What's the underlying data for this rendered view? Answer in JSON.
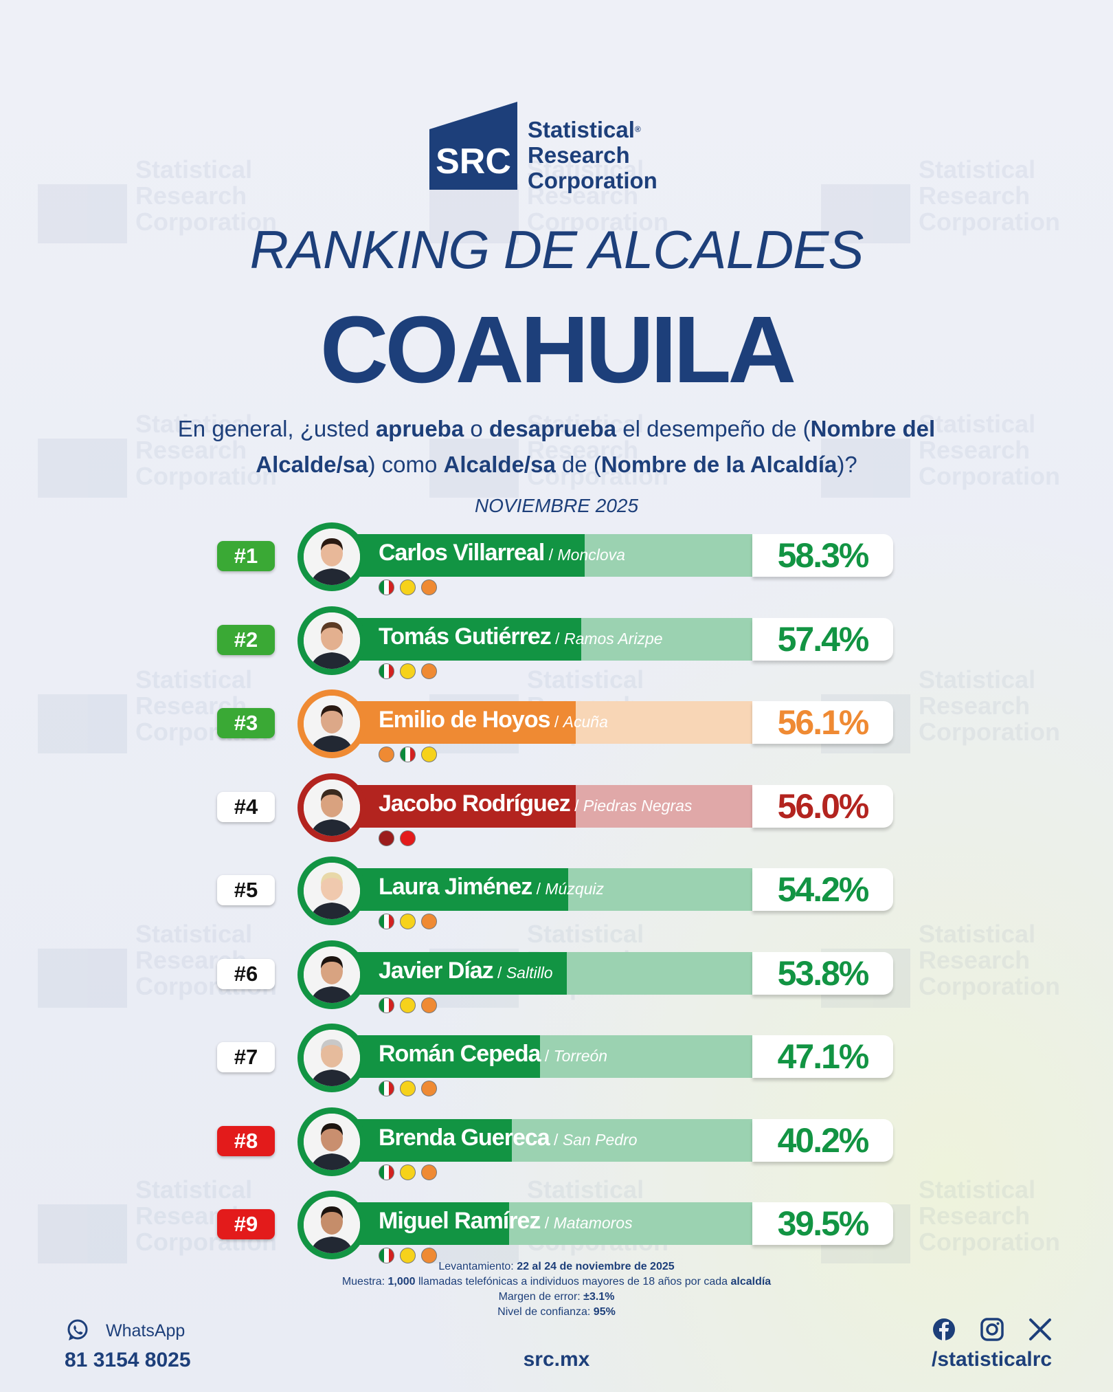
{
  "brand": {
    "mark": "SRC",
    "line1": "Statistical",
    "registered": "®",
    "line2": "Research",
    "line3": "Corporation",
    "color": "#1d3f7a"
  },
  "title": "RANKING DE ALCALDES",
  "state": "COAHUILA",
  "question": {
    "p1": "En general, ¿usted ",
    "b1": "aprueba",
    "p2": " o ",
    "b2": "desaprueba",
    "p3": " el desempeño de (",
    "b3": "Nombre del Alcalde/sa",
    "p4": ") como ",
    "b4": "Alcalde/sa",
    "p5": " de (",
    "b5": "Nombre de la Alcaldía",
    "p6": ")?"
  },
  "period": "NOVIEMBRE 2025",
  "chart_data": {
    "type": "bar",
    "orientation": "horizontal",
    "title": "RANKING DE ALCALDES",
    "subtitle": "NOVIEMBRE 2025",
    "unit": "%",
    "xlim": [
      0,
      100
    ],
    "categories": [
      "Carlos Villarreal",
      "Tomás Gutiérrez",
      "Emilio de Hoyos",
      "Jacobo Rodríguez",
      "Laura Jiménez",
      "Javier Díaz",
      "Román Cepeda",
      "Brenda Guereca",
      "Miguel Ramírez"
    ],
    "values": [
      58.3,
      57.4,
      56.1,
      56.0,
      54.2,
      53.8,
      47.1,
      40.2,
      39.5
    ],
    "rows": [
      {
        "rank": "#1",
        "rank_color": "green",
        "name": "Carlos Villarreal",
        "city": "Monclova",
        "value": 58.3,
        "label": "58.3%",
        "theme": "green",
        "parties": [
          "PRI",
          "PRD",
          "UDC"
        ]
      },
      {
        "rank": "#2",
        "rank_color": "green",
        "name": "Tomás Gutiérrez",
        "city": "Ramos Arizpe",
        "value": 57.4,
        "label": "57.4%",
        "theme": "green",
        "parties": [
          "PRI",
          "PRD",
          "UDC"
        ]
      },
      {
        "rank": "#3",
        "rank_color": "green",
        "name": "Emilio de Hoyos",
        "city": "Acuña",
        "value": 56.1,
        "label": "56.1%",
        "theme": "orange",
        "parties": [
          "UDC",
          "PRI",
          "PRD"
        ]
      },
      {
        "rank": "#4",
        "rank_color": "white",
        "name": "Jacobo Rodríguez",
        "city": "Piedras Negras",
        "value": 56.0,
        "label": "56.0%",
        "theme": "red",
        "parties": [
          "morena",
          "PT"
        ]
      },
      {
        "rank": "#5",
        "rank_color": "white",
        "name": "Laura Jiménez",
        "city": "Múzquiz",
        "value": 54.2,
        "label": "54.2%",
        "theme": "green",
        "parties": [
          "PRI",
          "PRD",
          "UDC"
        ]
      },
      {
        "rank": "#6",
        "rank_color": "white",
        "name": "Javier Díaz",
        "city": "Saltillo",
        "value": 53.8,
        "label": "53.8%",
        "theme": "green",
        "parties": [
          "PRI",
          "PRD",
          "UDC"
        ]
      },
      {
        "rank": "#7",
        "rank_color": "white",
        "name": "Román Cepeda",
        "city": "Torreón",
        "value": 47.1,
        "label": "47.1%",
        "theme": "green",
        "parties": [
          "PRI",
          "PRD",
          "UDC"
        ]
      },
      {
        "rank": "#8",
        "rank_color": "red",
        "name": "Brenda Guereca",
        "city": "San Pedro",
        "value": 40.2,
        "label": "40.2%",
        "theme": "green",
        "parties": [
          "PRI",
          "PRD",
          "UDC"
        ]
      },
      {
        "rank": "#9",
        "rank_color": "red",
        "name": "Miguel Ramírez",
        "city": "Matamoros",
        "value": 39.5,
        "label": "39.5%",
        "theme": "green",
        "parties": [
          "PRI",
          "PRD",
          "UDC"
        ]
      }
    ]
  },
  "colors": {
    "green": "#129443",
    "orange": "#ef8a33",
    "red": "#b3241f",
    "rank_green": "#3aa935",
    "rank_red": "#e31b1b"
  },
  "footnotes": {
    "l1_label": "Levantamiento: ",
    "l1_value": "22 al 24 de noviembre de 2025",
    "l2_label": "Muestra: ",
    "l2_v1": "1,000",
    "l2_mid": " llamadas telefónicas a individuos mayores de 18 años por cada ",
    "l2_v2": "alcaldía",
    "l3_label": "Margen de error: ",
    "l3_value": "±3.1%",
    "l4_label": "Nivel de confianza: ",
    "l4_value": "95%"
  },
  "footer": {
    "whatsapp_label": "WhatsApp",
    "phone": "81 3154 8025",
    "site": "src.mx",
    "handle": "/statisticalrc",
    "icons": [
      "whatsapp-icon",
      "facebook-icon",
      "instagram-icon",
      "x-icon"
    ]
  }
}
